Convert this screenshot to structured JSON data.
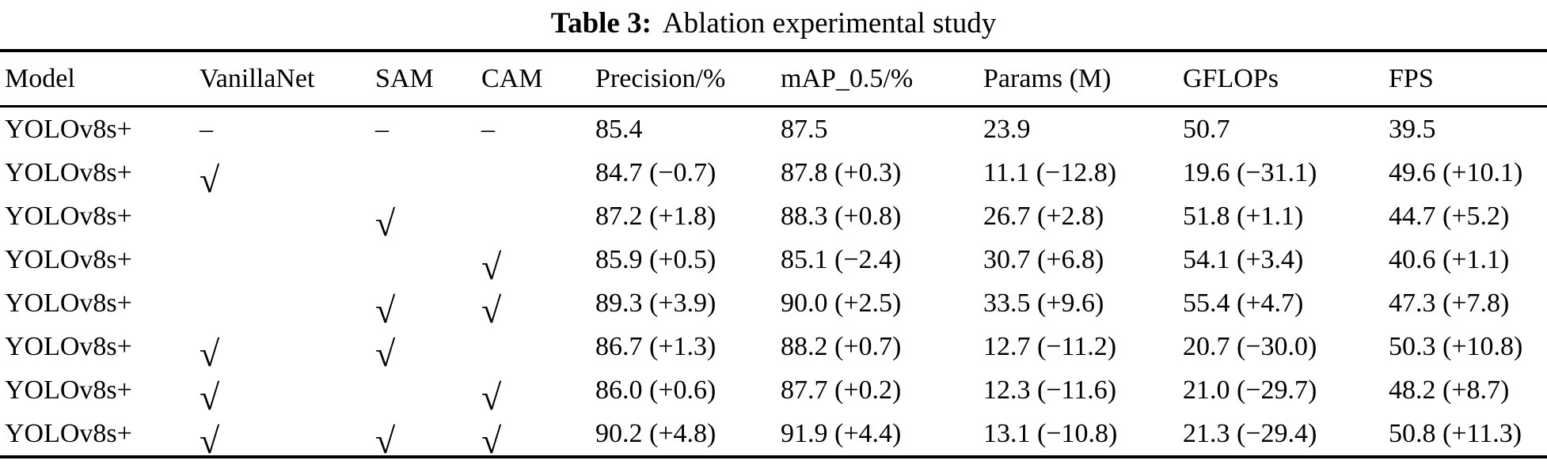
{
  "title": {
    "label": "Table 3:",
    "text": "Ablation experimental study"
  },
  "colors": {
    "text": "#000000",
    "background": "#ffffff",
    "rule": "#000000"
  },
  "table": {
    "columns": [
      "Model",
      "VanillaNet",
      "SAM",
      "CAM",
      "Precision/%",
      "mAP_0.5/%",
      "Params (M)",
      "GFLOPs",
      "FPS"
    ],
    "column_keys": [
      "model",
      "vanillanet",
      "sam",
      "cam",
      "precision-pct",
      "map-0-5-pct",
      "params-m",
      "gflops",
      "fps"
    ],
    "check_glyph": "√",
    "dash_glyph": "–",
    "rows": [
      {
        "cells": [
          "YOLOv8s+",
          "–",
          "–",
          "–",
          "85.4",
          "87.5",
          "23.9",
          "50.7",
          "39.5"
        ]
      },
      {
        "cells": [
          "YOLOv8s+",
          "√",
          "",
          "",
          "84.7 (−0.7)",
          "87.8 (+0.3)",
          "11.1 (−12.8)",
          "19.6 (−31.1)",
          "49.6 (+10.1)"
        ]
      },
      {
        "cells": [
          "YOLOv8s+",
          "",
          "√",
          "",
          "87.2 (+1.8)",
          "88.3 (+0.8)",
          "26.7 (+2.8)",
          "51.8 (+1.1)",
          "44.7 (+5.2)"
        ]
      },
      {
        "cells": [
          "YOLOv8s+",
          "",
          "",
          "√",
          "85.9 (+0.5)",
          "85.1 (−2.4)",
          "30.7 (+6.8)",
          "54.1 (+3.4)",
          "40.6 (+1.1)"
        ]
      },
      {
        "cells": [
          "YOLOv8s+",
          "",
          "√",
          "√",
          "89.3 (+3.9)",
          "90.0 (+2.5)",
          "33.5 (+9.6)",
          "55.4 (+4.7)",
          "47.3 (+7.8)"
        ]
      },
      {
        "cells": [
          "YOLOv8s+",
          "√",
          "√",
          "",
          "86.7 (+1.3)",
          "88.2 (+0.7)",
          "12.7 (−11.2)",
          "20.7 (−30.0)",
          "50.3 (+10.8)"
        ]
      },
      {
        "cells": [
          "YOLOv8s+",
          "√",
          "",
          "√",
          "86.0 (+0.6)",
          "87.7 (+0.2)",
          "12.3 (−11.6)",
          "21.0 (−29.7)",
          "48.2 (+8.7)"
        ]
      },
      {
        "cells": [
          "YOLOv8s+",
          "√",
          "√",
          "√",
          "90.2 (+4.8)",
          "91.9 (+4.4)",
          "13.1 (−10.8)",
          "21.3 (−29.4)",
          "50.8 (+11.3)"
        ]
      }
    ]
  }
}
